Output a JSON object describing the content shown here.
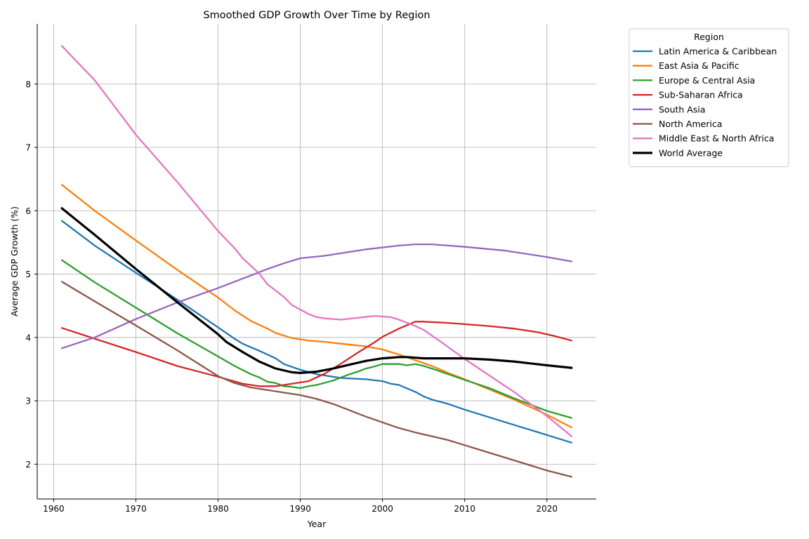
{
  "chart_data": {
    "type": "line",
    "title": "Smoothed GDP Growth Over Time by Region",
    "xlabel": "Year",
    "ylabel": "Average GDP Growth (%)",
    "xlim": [
      1958,
      2026
    ],
    "ylim": [
      1.45,
      8.95
    ],
    "x_ticks": [
      1960,
      1970,
      1980,
      1990,
      2000,
      2010,
      2020
    ],
    "y_ticks": [
      2,
      3,
      4,
      5,
      6,
      7,
      8
    ],
    "grid": true,
    "legend": {
      "title": "Region",
      "placement": "outside-right-top"
    },
    "series": [
      {
        "name": "Latin America & Caribbean",
        "color": "#1f77b4",
        "points": [
          [
            1961,
            5.84
          ],
          [
            1965,
            5.45
          ],
          [
            1970,
            5.02
          ],
          [
            1975,
            4.6
          ],
          [
            1980,
            4.16
          ],
          [
            1982,
            3.98
          ],
          [
            1983,
            3.9
          ],
          [
            1985,
            3.79
          ],
          [
            1987,
            3.67
          ],
          [
            1988,
            3.58
          ],
          [
            1990,
            3.49
          ],
          [
            1992,
            3.42
          ],
          [
            1995,
            3.36
          ],
          [
            1998,
            3.34
          ],
          [
            2000,
            3.31
          ],
          [
            2001,
            3.27
          ],
          [
            2002,
            3.25
          ],
          [
            2004,
            3.14
          ],
          [
            2005,
            3.07
          ],
          [
            2006,
            3.02
          ],
          [
            2008,
            2.95
          ],
          [
            2010,
            2.86
          ],
          [
            2015,
            2.66
          ],
          [
            2020,
            2.46
          ],
          [
            2023,
            2.34
          ]
        ],
        "width": 2.3
      },
      {
        "name": "East Asia & Pacific",
        "color": "#ff7f0e",
        "points": [
          [
            1961,
            6.41
          ],
          [
            1965,
            6.0
          ],
          [
            1970,
            5.53
          ],
          [
            1975,
            5.07
          ],
          [
            1980,
            4.63
          ],
          [
            1982,
            4.43
          ],
          [
            1984,
            4.26
          ],
          [
            1986,
            4.14
          ],
          [
            1987,
            4.07
          ],
          [
            1989,
            3.99
          ],
          [
            1991,
            3.95
          ],
          [
            1993,
            3.93
          ],
          [
            1995,
            3.9
          ],
          [
            1998,
            3.86
          ],
          [
            2000,
            3.81
          ],
          [
            2002,
            3.73
          ],
          [
            2004,
            3.64
          ],
          [
            2006,
            3.55
          ],
          [
            2008,
            3.44
          ],
          [
            2010,
            3.34
          ],
          [
            2013,
            3.18
          ],
          [
            2016,
            3.02
          ],
          [
            2020,
            2.78
          ],
          [
            2023,
            2.58
          ]
        ],
        "width": 2.3
      },
      {
        "name": "Europe & Central Asia",
        "color": "#2ca02c",
        "points": [
          [
            1961,
            5.22
          ],
          [
            1965,
            4.87
          ],
          [
            1970,
            4.47
          ],
          [
            1975,
            4.07
          ],
          [
            1980,
            3.7
          ],
          [
            1982,
            3.55
          ],
          [
            1984,
            3.42
          ],
          [
            1985,
            3.37
          ],
          [
            1986,
            3.3
          ],
          [
            1987,
            3.28
          ],
          [
            1988,
            3.23
          ],
          [
            1989,
            3.22
          ],
          [
            1990,
            3.2
          ],
          [
            1991,
            3.23
          ],
          [
            1992,
            3.25
          ],
          [
            1994,
            3.32
          ],
          [
            1996,
            3.42
          ],
          [
            1997,
            3.46
          ],
          [
            1998,
            3.51
          ],
          [
            1999,
            3.54
          ],
          [
            2000,
            3.58
          ],
          [
            2001,
            3.58
          ],
          [
            2002,
            3.58
          ],
          [
            2003,
            3.56
          ],
          [
            2004,
            3.58
          ],
          [
            2005,
            3.55
          ],
          [
            2006,
            3.51
          ],
          [
            2008,
            3.42
          ],
          [
            2010,
            3.33
          ],
          [
            2013,
            3.2
          ],
          [
            2016,
            3.04
          ],
          [
            2020,
            2.84
          ],
          [
            2023,
            2.73
          ]
        ],
        "width": 2.3
      },
      {
        "name": "Sub-Saharan Africa",
        "color": "#d62728",
        "points": [
          [
            1961,
            4.15
          ],
          [
            1965,
            3.98
          ],
          [
            1970,
            3.77
          ],
          [
            1975,
            3.55
          ],
          [
            1980,
            3.38
          ],
          [
            1983,
            3.27
          ],
          [
            1985,
            3.23
          ],
          [
            1987,
            3.23
          ],
          [
            1989,
            3.27
          ],
          [
            1991,
            3.31
          ],
          [
            1993,
            3.43
          ],
          [
            1995,
            3.59
          ],
          [
            1997,
            3.76
          ],
          [
            1999,
            3.92
          ],
          [
            2000,
            4.01
          ],
          [
            2002,
            4.14
          ],
          [
            2004,
            4.25
          ],
          [
            2005,
            4.25
          ],
          [
            2008,
            4.23
          ],
          [
            2010,
            4.21
          ],
          [
            2013,
            4.18
          ],
          [
            2016,
            4.14
          ],
          [
            2019,
            4.08
          ],
          [
            2021,
            4.02
          ],
          [
            2023,
            3.95
          ]
        ],
        "width": 2.3
      },
      {
        "name": "South Asia",
        "color": "#9467bd",
        "points": [
          [
            1961,
            3.83
          ],
          [
            1965,
            4.0
          ],
          [
            1970,
            4.29
          ],
          [
            1975,
            4.55
          ],
          [
            1980,
            4.78
          ],
          [
            1982,
            4.88
          ],
          [
            1984,
            4.98
          ],
          [
            1986,
            5.08
          ],
          [
            1988,
            5.17
          ],
          [
            1990,
            5.25
          ],
          [
            1993,
            5.29
          ],
          [
            1995,
            5.33
          ],
          [
            1998,
            5.39
          ],
          [
            2000,
            5.42
          ],
          [
            2002,
            5.45
          ],
          [
            2004,
            5.47
          ],
          [
            2006,
            5.47
          ],
          [
            2010,
            5.43
          ],
          [
            2015,
            5.37
          ],
          [
            2020,
            5.27
          ],
          [
            2023,
            5.2
          ]
        ],
        "width": 2.3
      },
      {
        "name": "North America",
        "color": "#8c564b",
        "points": [
          [
            1961,
            4.88
          ],
          [
            1965,
            4.57
          ],
          [
            1970,
            4.19
          ],
          [
            1975,
            3.8
          ],
          [
            1980,
            3.39
          ],
          [
            1982,
            3.28
          ],
          [
            1984,
            3.21
          ],
          [
            1986,
            3.17
          ],
          [
            1988,
            3.13
          ],
          [
            1990,
            3.09
          ],
          [
            1992,
            3.03
          ],
          [
            1994,
            2.95
          ],
          [
            1996,
            2.85
          ],
          [
            1998,
            2.75
          ],
          [
            2000,
            2.66
          ],
          [
            2002,
            2.57
          ],
          [
            2004,
            2.5
          ],
          [
            2006,
            2.44
          ],
          [
            2008,
            2.38
          ],
          [
            2010,
            2.3
          ],
          [
            2013,
            2.18
          ],
          [
            2016,
            2.06
          ],
          [
            2020,
            1.9
          ],
          [
            2023,
            1.8
          ]
        ],
        "width": 2.3
      },
      {
        "name": "Middle East & North Africa",
        "color": "#e377c2",
        "points": [
          [
            1961,
            8.6
          ],
          [
            1965,
            8.06
          ],
          [
            1970,
            7.2
          ],
          [
            1975,
            6.46
          ],
          [
            1980,
            5.68
          ],
          [
            1982,
            5.41
          ],
          [
            1983,
            5.25
          ],
          [
            1985,
            5.01
          ],
          [
            1986,
            4.84
          ],
          [
            1988,
            4.64
          ],
          [
            1989,
            4.51
          ],
          [
            1991,
            4.37
          ],
          [
            1992,
            4.32
          ],
          [
            1993,
            4.3
          ],
          [
            1995,
            4.28
          ],
          [
            1997,
            4.31
          ],
          [
            1999,
            4.34
          ],
          [
            2000,
            4.33
          ],
          [
            2001,
            4.32
          ],
          [
            2002,
            4.28
          ],
          [
            2004,
            4.18
          ],
          [
            2005,
            4.12
          ],
          [
            2007,
            3.94
          ],
          [
            2010,
            3.66
          ],
          [
            2013,
            3.4
          ],
          [
            2016,
            3.14
          ],
          [
            2020,
            2.76
          ],
          [
            2023,
            2.44
          ]
        ],
        "width": 2.3
      },
      {
        "name": "World Average",
        "color": "#000000",
        "points": [
          [
            1961,
            6.04
          ],
          [
            1965,
            5.62
          ],
          [
            1970,
            5.08
          ],
          [
            1975,
            4.56
          ],
          [
            1980,
            4.05
          ],
          [
            1981,
            3.93
          ],
          [
            1983,
            3.77
          ],
          [
            1985,
            3.62
          ],
          [
            1987,
            3.51
          ],
          [
            1989,
            3.45
          ],
          [
            1990,
            3.44
          ],
          [
            1992,
            3.46
          ],
          [
            1994,
            3.51
          ],
          [
            1996,
            3.57
          ],
          [
            1998,
            3.63
          ],
          [
            2000,
            3.67
          ],
          [
            2002,
            3.69
          ],
          [
            2003,
            3.69
          ],
          [
            2005,
            3.67
          ],
          [
            2008,
            3.67
          ],
          [
            2010,
            3.67
          ],
          [
            2013,
            3.65
          ],
          [
            2016,
            3.62
          ],
          [
            2020,
            3.56
          ],
          [
            2023,
            3.52
          ]
        ],
        "width": 3.2
      }
    ]
  }
}
